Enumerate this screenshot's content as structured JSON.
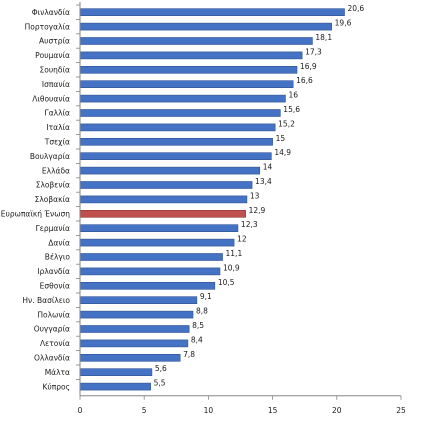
{
  "chart_data": {
    "type": "bar",
    "orientation": "horizontal",
    "categories": [
      "Φινλανδία",
      "Πορτογαλία",
      "Αυστρία",
      "Ρουμανία",
      "Σουηδία",
      "Ισπανία",
      "Λιθουανία",
      "Γαλλία",
      "Ιταλία",
      "Τσεχία",
      "Βουλγαρία",
      "Ελλάδα",
      "Σλοβενία",
      "Σλοβακία",
      "Ευρωπαϊκή Ένωση",
      "Γερμανία",
      "Δανία",
      "Βέλγιο",
      "Ιρλανδία",
      "Εσθονία",
      "Ην. Βασίλειο",
      "Πολωνία",
      "Ουγγαρία",
      "Λετονία",
      "Ολλανδία",
      "Μάλτα",
      "Κύπρος"
    ],
    "values": [
      20.6,
      19.6,
      18.1,
      17.3,
      16.9,
      16.6,
      16,
      15.6,
      15.2,
      15,
      14.9,
      14,
      13.4,
      13,
      12.9,
      12.3,
      12,
      11.1,
      10.9,
      10.5,
      9.1,
      8.8,
      8.5,
      8.4,
      7.8,
      5.6,
      5.5
    ],
    "value_labels": [
      "20,6",
      "19,6",
      "18,1",
      "17,3",
      "16,9",
      "16,6",
      "16",
      "15,6",
      "15,2",
      "15",
      "14,9",
      "14",
      "13,4",
      "13",
      "12,9",
      "12,3",
      "12",
      "11,1",
      "10,9",
      "10,5",
      "9,1",
      "8,8",
      "8,5",
      "8,4",
      "7,8",
      "5,6",
      "5,5"
    ],
    "highlight_category": "Ευρωπαϊκή Ένωση",
    "xlim": [
      0,
      25
    ],
    "x_ticks": [
      "0",
      "5",
      "10",
      "15",
      "20",
      "25"
    ],
    "title": "",
    "xlabel": "",
    "ylabel": "",
    "grid": false,
    "colors": {
      "bar": "#4472c4",
      "bar_edge": "#2f528f",
      "highlight": "#c0504d",
      "highlight_edge": "#8c3836",
      "axis": "#868686"
    }
  }
}
